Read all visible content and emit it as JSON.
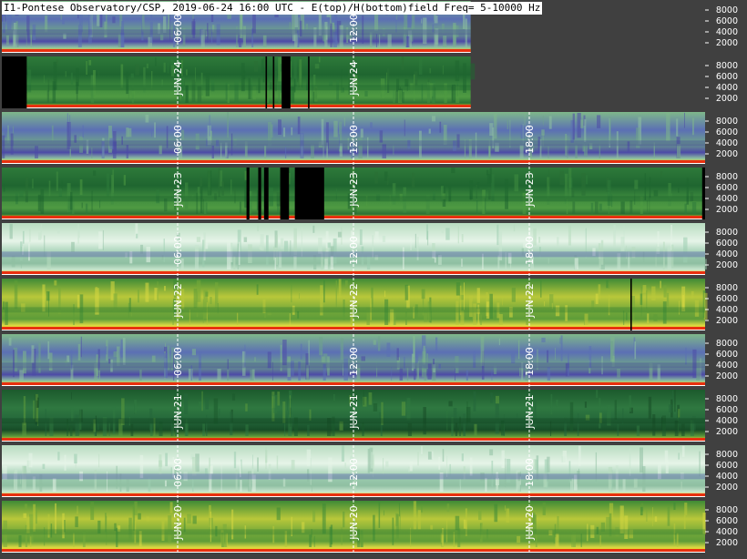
{
  "title": "I1-Pontese Observatory/CSP, 2019-06-24 16:00 UTC - E(top)/H(bottom)field Freq= 5-10000 Hz",
  "chart_data": {
    "type": "heatmap",
    "description_of_axes": "Each day: top strip = E field, bottom strip = H field; x = UTC hour 0-24, y = frequency Hz",
    "freq_range_hz": [
      5,
      10000
    ],
    "hour_range": [
      0,
      24
    ],
    "ytick_labels": [
      "8000",
      "6000",
      "4000",
      "2000"
    ],
    "hour_markers": [
      {
        "hour": 6,
        "text": "06:00"
      },
      {
        "hour": 12,
        "text": "12:00"
      },
      {
        "hour": 18,
        "text": "18:00"
      }
    ],
    "days": [
      {
        "label": "JUN-24",
        "end_hour": 16,
        "e_style": "blue",
        "h_style": "green",
        "h_gaps": [
          [
            0,
            0.85
          ],
          [
            9.0,
            9.05
          ],
          [
            9.25,
            9.3
          ],
          [
            9.55,
            9.85
          ],
          [
            10.45,
            10.5
          ]
        ]
      },
      {
        "label": "JUN-23",
        "end_hour": 24,
        "e_style": "blue",
        "h_style": "green",
        "h_gaps": [
          [
            8.35,
            8.45
          ],
          [
            8.75,
            8.85
          ],
          [
            8.95,
            9.1
          ],
          [
            9.5,
            9.8
          ],
          [
            10.0,
            11.0
          ],
          [
            23.9,
            24.0
          ]
        ]
      },
      {
        "label": "JUN-22",
        "end_hour": 24,
        "e_style": "pale",
        "h_style": "yellow",
        "h_gaps": [
          [
            21.45,
            21.5
          ]
        ]
      },
      {
        "label": "JUN-21",
        "end_hour": 24,
        "e_style": "blue",
        "h_style": "darkgreen",
        "h_gaps": []
      },
      {
        "label": "JUN-20",
        "end_hour": 24,
        "e_style": "pale",
        "h_style": "yellow",
        "h_gaps": []
      }
    ]
  }
}
